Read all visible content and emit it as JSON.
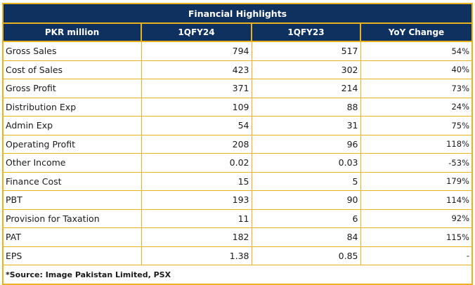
{
  "table": {
    "title": "Financial Highlights",
    "columns": [
      "PKR million",
      "1QFY24",
      "1QFY23",
      "YoY Change"
    ],
    "rows": [
      {
        "label": "Gross Sales",
        "fy24": "794",
        "fy23": "517",
        "yoy": "54%"
      },
      {
        "label": "Cost of Sales",
        "fy24": "423",
        "fy23": "302",
        "yoy": "40%"
      },
      {
        "label": "Gross Profit",
        "fy24": "371",
        "fy23": "214",
        "yoy": "73%"
      },
      {
        "label": "Distribution Exp",
        "fy24": "109",
        "fy23": "88",
        "yoy": "24%"
      },
      {
        "label": "Admin Exp",
        "fy24": "54",
        "fy23": "31",
        "yoy": "75%"
      },
      {
        "label": "Operating Profit",
        "fy24": "208",
        "fy23": "96",
        "yoy": "118%"
      },
      {
        "label": "Other Income",
        "fy24": "0.02",
        "fy23": "0.03",
        "yoy": "-53%"
      },
      {
        "label": "Finance Cost",
        "fy24": "15",
        "fy23": "5",
        "yoy": "179%"
      },
      {
        "label": "PBT",
        "fy24": "193",
        "fy23": "90",
        "yoy": "114%"
      },
      {
        "label": "Provision for Taxation",
        "fy24": "11",
        "fy23": "6",
        "yoy": "92%"
      },
      {
        "label": "PAT",
        "fy24": "182",
        "fy23": "84",
        "yoy": "115%"
      },
      {
        "label": "EPS",
        "fy24": "1.38",
        "fy23": "0.85",
        "yoy": "-"
      }
    ],
    "source": "*Source: Image Pakistan Limited, PSX"
  },
  "colors": {
    "header_bg": "#0e3160",
    "border": "#e8b31c",
    "header_text": "#ffffff"
  }
}
